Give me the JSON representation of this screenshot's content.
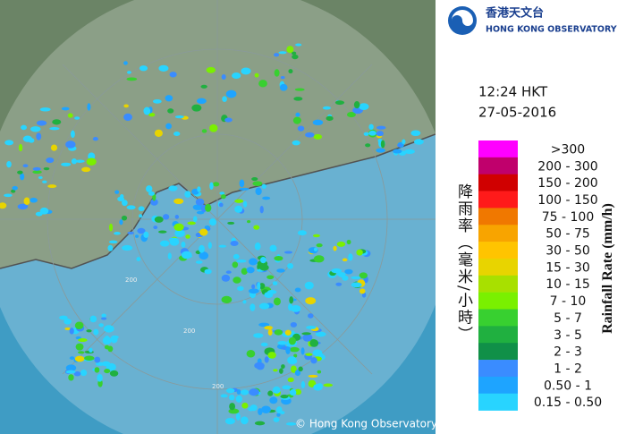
{
  "header": {
    "org_zh": "香港天文台",
    "org_en": "HONG KONG OBSERVATORY"
  },
  "time": "12:24 HKT",
  "date": "27-05-2016",
  "legend": {
    "title_zh": "降雨率（毫米/小時）",
    "title_en": "Rainfall Rate (mm/h)",
    "items": [
      {
        "label": ">300",
        "color": "#ff00ff"
      },
      {
        "label": "200 - 300",
        "color": "#c0006c"
      },
      {
        "label": "150 - 200",
        "color": "#d00000"
      },
      {
        "label": "100 - 150",
        "color": "#ff1a1a"
      },
      {
        "label": "75 - 100",
        "color": "#f07800"
      },
      {
        "label": "50 - 75",
        "color": "#f8a400"
      },
      {
        "label": "30 - 50",
        "color": "#ffc400"
      },
      {
        "label": "15 - 30",
        "color": "#e8d400"
      },
      {
        "label": "10 - 15",
        "color": "#a8e000"
      },
      {
        "label": "7 - 10",
        "color": "#7af000"
      },
      {
        "label": "5 - 7",
        "color": "#38d030"
      },
      {
        "label": "3 - 5",
        "color": "#20b040"
      },
      {
        "label": "2 - 3",
        "color": "#109048"
      },
      {
        "label": "1 - 2",
        "color": "#3a8cff"
      },
      {
        "label": "0.50 - 1",
        "color": "#1ea4ff"
      },
      {
        "label": "0.15 - 0.50",
        "color": "#28d4ff"
      }
    ]
  },
  "map": {
    "copyright": "© Hong Kong Observatory",
    "range_labels": [
      "200",
      "200",
      "200"
    ]
  }
}
